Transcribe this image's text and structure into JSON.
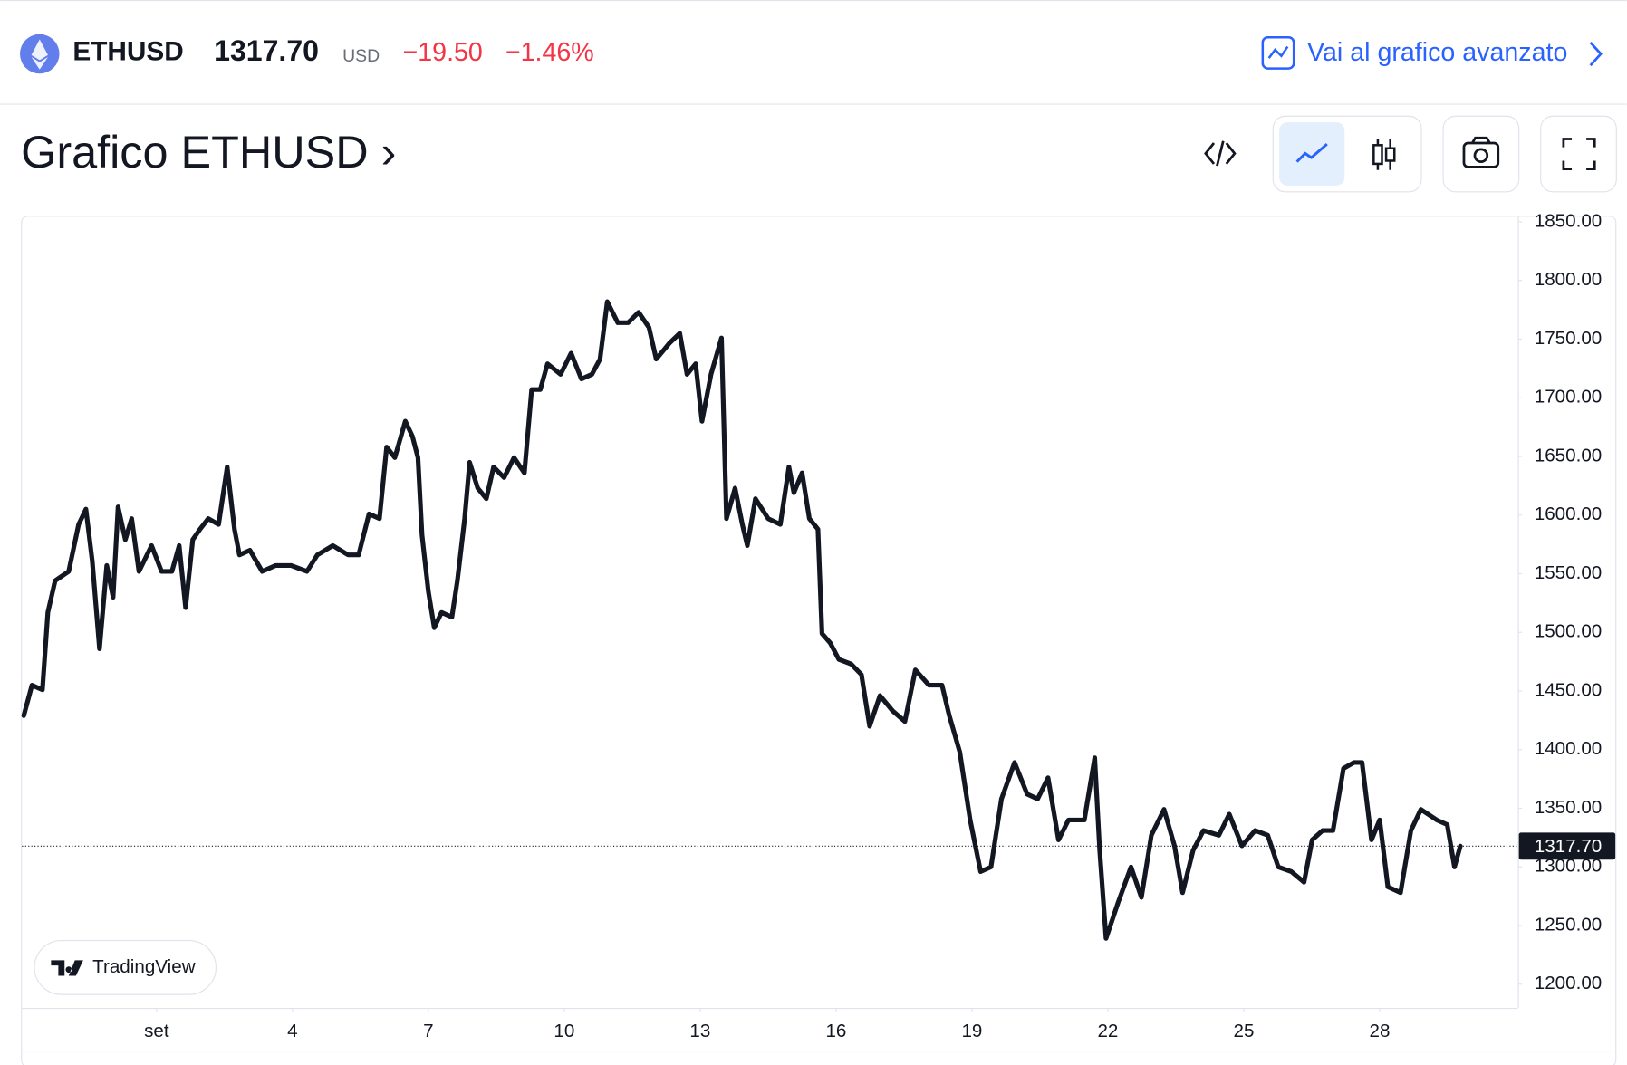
{
  "header": {
    "symbol": "ETHUSD",
    "price": "1317.70",
    "currency": "USD",
    "change": "−19.50",
    "change_percent": "−1.46%",
    "link": "Vai al grafico avanzato",
    "title": "Grafico ETHUSD ›",
    "logo": "TradingView"
  },
  "chart_data": {
    "type": "line",
    "color": "#131722",
    "x": [
      -1.93,
      -1.75,
      -1.52,
      -1.4,
      -1.24,
      -0.94,
      -0.72,
      -0.56,
      -0.42,
      -0.26,
      -0.1,
      0.04,
      0.15,
      0.31,
      0.45,
      0.61,
      0.89,
      1.11,
      1.34,
      1.5,
      1.64,
      1.8,
      1.96,
      2.14,
      2.37,
      2.56,
      2.72,
      2.83,
      3.06,
      3.33,
      3.63,
      3.97,
      4.32,
      4.55,
      4.89,
      5.23,
      5.46,
      5.69,
      5.92,
      6.08,
      6.26,
      6.49,
      6.65,
      6.77,
      6.86,
      7.0,
      7.13,
      7.29,
      7.52,
      7.64,
      7.8,
      7.91,
      8.09,
      8.28,
      8.44,
      8.67,
      8.89,
      9.12,
      9.28,
      9.47,
      9.63,
      9.92,
      10.15,
      10.38,
      10.61,
      10.79,
      10.95,
      11.18,
      11.41,
      11.64,
      11.87,
      12.03,
      12.33,
      12.55,
      12.71,
      12.9,
      13.04,
      13.24,
      13.47,
      13.58,
      13.77,
      13.93,
      14.04,
      14.22,
      14.5,
      14.77,
      14.96,
      15.07,
      15.25,
      15.41,
      15.6,
      15.69,
      15.87,
      16.06,
      16.33,
      16.56,
      16.74,
      16.97,
      17.25,
      17.52,
      17.75,
      18.05,
      18.34,
      18.5,
      18.73,
      18.96,
      19.19,
      19.42,
      19.65,
      19.94,
      20.22,
      20.45,
      20.68,
      20.91,
      21.13,
      21.48,
      21.71,
      21.82,
      21.96,
      22.23,
      22.51,
      22.74,
      22.96,
      23.24,
      23.47,
      23.65,
      23.88,
      24.11,
      24.45,
      24.68,
      24.96,
      25.25,
      25.53,
      25.76,
      26.05,
      26.33,
      26.51,
      26.74,
      26.97,
      27.2,
      27.43,
      27.61,
      27.82,
      28.0,
      28.18,
      28.46,
      28.69,
      28.91,
      29.26,
      29.49,
      29.65,
      29.78
    ],
    "values": [
      1429,
      1455,
      1451,
      1517,
      1544,
      1552,
      1592,
      1605,
      1561,
      1486,
      1557,
      1530,
      1607,
      1579,
      1597,
      1552,
      1574,
      1552,
      1552,
      1574,
      1521,
      1579,
      1588,
      1597,
      1592,
      1641,
      1588,
      1566,
      1570,
      1552,
      1557,
      1557,
      1552,
      1566,
      1574,
      1566,
      1566,
      1601,
      1597,
      1658,
      1649,
      1680,
      1667,
      1649,
      1583,
      1535,
      1504,
      1517,
      1513,
      1544,
      1597,
      1645,
      1623,
      1614,
      1641,
      1632,
      1649,
      1636,
      1707,
      1707,
      1729,
      1720,
      1738,
      1716,
      1720,
      1733,
      1782,
      1764,
      1764,
      1773,
      1760,
      1733,
      1747,
      1755,
      1720,
      1729,
      1680,
      1720,
      1751,
      1597,
      1623,
      1592,
      1574,
      1614,
      1597,
      1592,
      1641,
      1619,
      1636,
      1597,
      1588,
      1499,
      1491,
      1477,
      1473,
      1464,
      1420,
      1446,
      1433,
      1424,
      1468,
      1455,
      1455,
      1429,
      1398,
      1340,
      1296,
      1300,
      1358,
      1389,
      1362,
      1358,
      1376,
      1323,
      1340,
      1340,
      1393,
      1314,
      1239,
      1270,
      1300,
      1274,
      1327,
      1349,
      1318,
      1278,
      1314,
      1331,
      1327,
      1345,
      1318,
      1331,
      1327,
      1300,
      1296,
      1287,
      1323,
      1331,
      1331,
      1384,
      1389,
      1389,
      1323,
      1340,
      1283,
      1278,
      1331,
      1349,
      1340,
      1336,
      1300,
      1317.7
    ],
    "xlim": [
      -1.97,
      31.05
    ],
    "xticks": [
      {
        "value": 1,
        "label": "set"
      },
      4,
      7,
      10,
      13,
      16,
      19,
      22,
      25,
      28
    ],
    "ylim": [
      1179.7,
      1854.4
    ],
    "yticks": [
      {
        "value": 1200,
        "label": "1200.00"
      },
      {
        "value": 1250,
        "label": "1250.00"
      },
      {
        "value": 1300,
        "label": "1300.00"
      },
      {
        "value": 1350,
        "label": "1350.00"
      },
      {
        "value": 1400,
        "label": "1400.00"
      },
      {
        "value": 1450,
        "label": "1450.00"
      },
      {
        "value": 1500,
        "label": "1500.00"
      },
      {
        "value": 1550,
        "label": "1550.00"
      },
      {
        "value": 1600,
        "label": "1600.00"
      },
      {
        "value": 1650,
        "label": "1650.00"
      },
      {
        "value": 1700,
        "label": "1700.00"
      },
      {
        "value": 1750,
        "label": "1750.00"
      },
      {
        "value": 1800,
        "label": "1800.00"
      },
      {
        "value": 1850,
        "label": "1850.00"
      }
    ],
    "last_value": 1317.7,
    "last_value_label": "1317.70"
  }
}
